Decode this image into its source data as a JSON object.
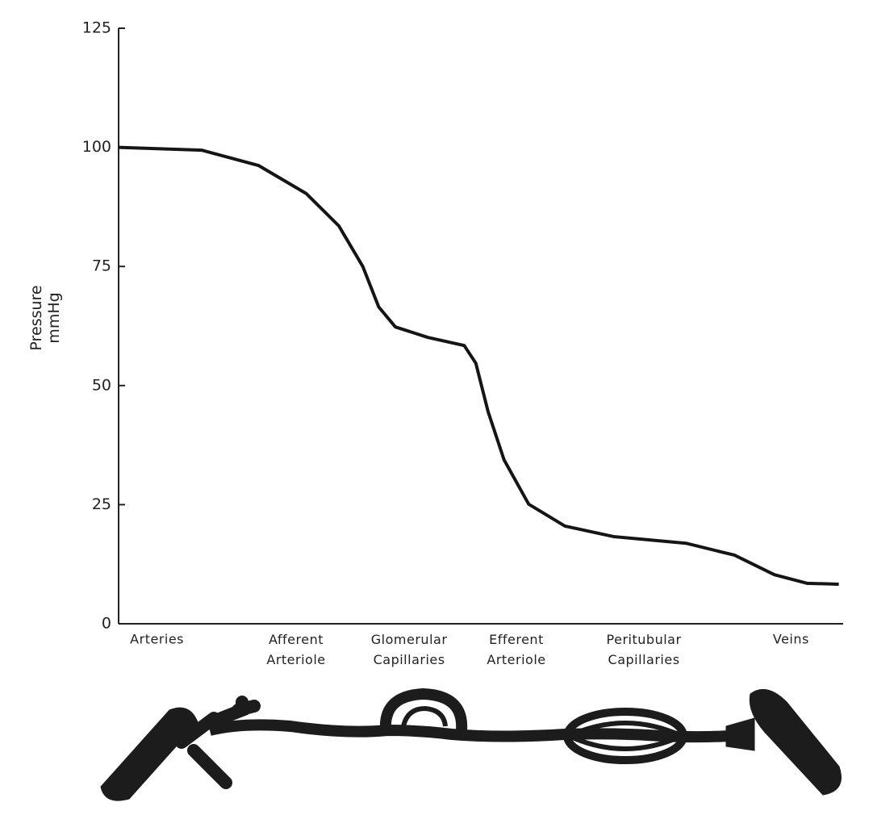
{
  "chart_data": {
    "type": "line",
    "y_label": "Pressure mmHg",
    "x": [
      0,
      11.5,
      19.3,
      25.9,
      30.4,
      33.7,
      35.9,
      38.2,
      42.7,
      47.7,
      49.3,
      51,
      53.2,
      56.6,
      61.6,
      68.3,
      78.3,
      85,
      90.5,
      95,
      99.4
    ],
    "values": [
      100,
      99.4,
      96.2,
      90.3,
      83.5,
      75,
      66.5,
      62.3,
      60.1,
      58.4,
      54.7,
      44.5,
      34.4,
      25.1,
      20.5,
      18.3,
      16.9,
      14.4,
      10.3,
      8.5,
      8.3
    ],
    "color": "#151515",
    "xlim": [
      0,
      100
    ],
    "xticks": [
      {
        "value": 5.3,
        "label": "Arteries"
      },
      {
        "value": 24.5,
        "label": "Afferent Arteriole"
      },
      {
        "value": 40.1,
        "label": "Glomerular Capillaries"
      },
      {
        "value": 54.9,
        "label": "Efferent Arteriole"
      },
      {
        "value": 72.5,
        "label": "Peritubular Capillaries"
      },
      {
        "value": 92.8,
        "label": "Veins"
      }
    ],
    "ylim": [
      0,
      125
    ],
    "yticks": [
      0,
      25,
      50,
      75,
      100,
      125
    ]
  }
}
